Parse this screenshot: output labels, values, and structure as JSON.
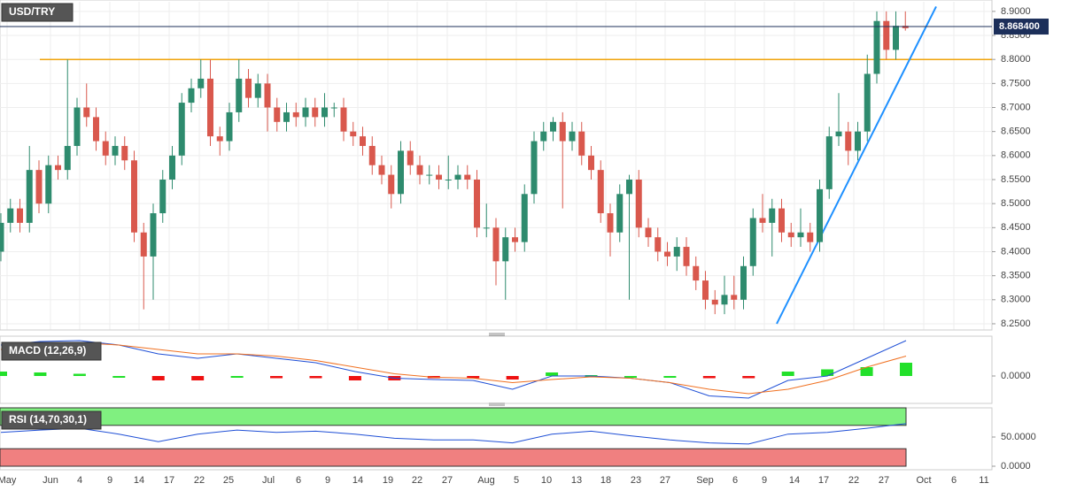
{
  "chart_data": [
    {
      "type": "candlestick",
      "title": "USD/TRY",
      "up_color": "#2e8b6e",
      "down_color": "#d9584d",
      "x_labels": [
        "May",
        "Jun",
        "4",
        "9",
        "14",
        "17",
        "22",
        "25",
        "Jul",
        "6",
        "9",
        "14",
        "19",
        "22",
        "27",
        "Aug",
        "5",
        "10",
        "13",
        "18",
        "23",
        "27",
        "Sep",
        "6",
        "9",
        "14",
        "17",
        "22",
        "27",
        "Oct",
        "6",
        "11"
      ],
      "open": [
        8.4,
        8.46,
        8.49,
        8.46,
        8.57,
        8.5,
        8.58,
        8.57,
        8.62,
        8.7,
        8.68,
        8.63,
        8.6,
        8.62,
        8.59,
        8.44,
        8.39,
        8.48,
        8.55,
        8.6,
        8.71,
        8.74,
        8.76,
        8.64,
        8.63,
        8.69,
        8.76,
        8.72,
        8.75,
        8.7,
        8.67,
        8.69,
        8.68,
        8.7,
        8.68,
        8.7,
        8.7,
        8.65,
        8.64,
        8.62,
        8.58,
        8.56,
        8.52,
        8.61,
        8.58,
        8.56,
        8.56,
        8.55,
        8.55,
        8.56,
        8.55,
        8.45,
        8.45,
        8.38,
        8.43,
        8.42,
        8.52,
        8.63,
        8.65,
        8.67,
        8.63,
        8.65,
        8.6,
        8.57,
        8.48,
        8.44,
        8.52,
        8.55,
        8.45,
        8.43,
        8.4,
        8.39,
        8.41,
        8.37,
        8.34,
        8.3,
        8.29,
        8.31,
        8.3,
        8.37,
        8.47,
        8.46,
        8.49,
        8.44,
        8.43,
        8.44,
        8.42,
        8.53,
        8.64,
        8.65,
        8.61,
        8.65,
        8.77,
        8.88,
        8.82,
        8.87
      ],
      "high": [
        8.48,
        8.51,
        8.51,
        8.62,
        8.59,
        8.6,
        8.6,
        8.8,
        8.72,
        8.75,
        8.7,
        8.65,
        8.64,
        8.64,
        8.61,
        8.46,
        8.5,
        8.57,
        8.62,
        8.73,
        8.76,
        8.8,
        8.8,
        8.66,
        8.71,
        8.8,
        8.78,
        8.77,
        8.77,
        8.72,
        8.71,
        8.71,
        8.72,
        8.72,
        8.73,
        8.71,
        8.72,
        8.67,
        8.66,
        8.64,
        8.6,
        8.58,
        8.63,
        8.63,
        8.6,
        8.58,
        8.58,
        8.6,
        8.58,
        8.58,
        8.57,
        8.5,
        8.47,
        8.45,
        8.45,
        8.54,
        8.65,
        8.67,
        8.68,
        8.69,
        8.67,
        8.67,
        8.62,
        8.59,
        8.5,
        8.54,
        8.56,
        8.57,
        8.47,
        8.45,
        8.42,
        8.43,
        8.43,
        8.39,
        8.36,
        8.32,
        8.35,
        8.35,
        8.39,
        8.49,
        8.52,
        8.51,
        8.51,
        8.46,
        8.49,
        8.46,
        8.55,
        8.66,
        8.73,
        8.67,
        8.67,
        8.81,
        8.9,
        8.9,
        8.9,
        8.9
      ],
      "low": [
        8.38,
        8.44,
        8.44,
        8.44,
        8.48,
        8.48,
        8.55,
        8.55,
        8.6,
        8.66,
        8.61,
        8.58,
        8.58,
        8.57,
        8.42,
        8.28,
        8.3,
        8.46,
        8.53,
        8.58,
        8.69,
        8.72,
        8.62,
        8.6,
        8.61,
        8.67,
        8.7,
        8.7,
        8.65,
        8.65,
        8.65,
        8.66,
        8.66,
        8.66,
        8.66,
        8.68,
        8.63,
        8.62,
        8.6,
        8.56,
        8.54,
        8.49,
        8.5,
        8.56,
        8.54,
        8.54,
        8.53,
        8.53,
        8.53,
        8.53,
        8.43,
        8.43,
        8.33,
        8.3,
        8.4,
        8.4,
        8.5,
        8.61,
        8.63,
        8.49,
        8.61,
        8.58,
        8.55,
        8.46,
        8.39,
        8.42,
        8.3,
        8.43,
        8.41,
        8.38,
        8.37,
        8.36,
        8.35,
        8.32,
        8.28,
        8.27,
        8.27,
        8.28,
        8.28,
        8.35,
        8.44,
        8.39,
        8.42,
        8.41,
        8.41,
        8.4,
        8.4,
        8.51,
        8.62,
        8.58,
        8.59,
        8.63,
        8.75,
        8.8,
        8.8,
        8.86
      ],
      "close": [
        8.46,
        8.49,
        8.46,
        8.57,
        8.5,
        8.58,
        8.57,
        8.62,
        8.7,
        8.68,
        8.63,
        8.6,
        8.62,
        8.59,
        8.44,
        8.39,
        8.48,
        8.55,
        8.6,
        8.71,
        8.74,
        8.76,
        8.64,
        8.63,
        8.69,
        8.76,
        8.72,
        8.75,
        8.7,
        8.67,
        8.69,
        8.68,
        8.7,
        8.68,
        8.7,
        8.7,
        8.65,
        8.64,
        8.62,
        8.58,
        8.56,
        8.52,
        8.61,
        8.58,
        8.56,
        8.56,
        8.55,
        8.55,
        8.56,
        8.55,
        8.45,
        8.45,
        8.38,
        8.43,
        8.42,
        8.52,
        8.63,
        8.65,
        8.67,
        8.63,
        8.65,
        8.6,
        8.57,
        8.48,
        8.44,
        8.52,
        8.55,
        8.45,
        8.43,
        8.4,
        8.39,
        8.41,
        8.37,
        8.34,
        8.3,
        8.29,
        8.31,
        8.3,
        8.37,
        8.47,
        8.46,
        8.49,
        8.44,
        8.43,
        8.44,
        8.42,
        8.53,
        8.64,
        8.65,
        8.61,
        8.65,
        8.77,
        8.88,
        8.82,
        8.87,
        8.865
      ],
      "ylim": [
        8.24,
        8.92
      ],
      "yticks": [
        {
          "value": 8.9,
          "label": "8.9000"
        },
        {
          "value": 8.85,
          "label": "8.8500"
        },
        {
          "value": 8.8,
          "label": "8.8000"
        },
        {
          "value": 8.75,
          "label": "8.7500"
        },
        {
          "value": 8.7,
          "label": "8.7000"
        },
        {
          "value": 8.65,
          "label": "8.6500"
        },
        {
          "value": 8.6,
          "label": "8.6000"
        },
        {
          "value": 8.55,
          "label": "8.5500"
        },
        {
          "value": 8.5,
          "label": "8.5000"
        },
        {
          "value": 8.45,
          "label": "8.4500"
        },
        {
          "value": 8.4,
          "label": "8.4000"
        },
        {
          "value": 8.35,
          "label": "8.3500"
        },
        {
          "value": 8.3,
          "label": "8.3000"
        },
        {
          "value": 8.25,
          "label": "8.2500"
        }
      ],
      "last_price": {
        "value": 8.8684,
        "label": "8.868400",
        "color": "#1c2f5a"
      },
      "resistance": {
        "value": 8.8,
        "color": "#f0a30a"
      },
      "trendline": {
        "from": 8.25,
        "to": 8.91,
        "color": "#1e90ff"
      },
      "grid": true
    },
    {
      "type": "macd",
      "title": "MACD (12,26,9)",
      "ylim": [
        -0.06,
        0.09
      ],
      "yticks": [
        {
          "value": 0,
          "label": "0.0000"
        }
      ],
      "series": [
        {
          "kind": "bar",
          "up_color": "#22e02a",
          "down_color": "#ee1111",
          "values": [
            0.01,
            0.008,
            0.005,
            0,
            -0.01,
            -0.01,
            0,
            -0.005,
            -0.005,
            -0.01,
            -0.01,
            -0.005,
            -0.005,
            -0.008,
            0.008,
            0.002,
            0,
            0,
            -0.005,
            -0.005,
            0.01,
            0.015,
            0.02,
            0.03
          ]
        },
        {
          "kind": "line",
          "color": "#1f4fd6",
          "values": [
            0.07,
            0.078,
            0.08,
            0.07,
            0.05,
            0.04,
            0.05,
            0.04,
            0.03,
            0.01,
            -0.005,
            -0.008,
            -0.01,
            -0.03,
            0,
            0,
            -0.005,
            -0.015,
            -0.045,
            -0.05,
            -0.01,
            0,
            0.04,
            0.08
          ]
        },
        {
          "kind": "line",
          "color": "#f07020",
          "values": [
            0.06,
            0.07,
            0.075,
            0.07,
            0.06,
            0.05,
            0.05,
            0.045,
            0.035,
            0.02,
            0.005,
            -0.003,
            -0.005,
            -0.015,
            -0.008,
            -0.002,
            -0.005,
            -0.015,
            -0.03,
            -0.04,
            -0.03,
            -0.01,
            0.02,
            0.045
          ]
        }
      ]
    },
    {
      "type": "rsi",
      "title": "RSI (14,70,30,1)",
      "ylim": [
        0,
        100
      ],
      "yticks": [
        {
          "value": 50,
          "label": "50.0000"
        },
        {
          "value": 0,
          "label": "0.0000"
        }
      ],
      "bands": [
        {
          "from": 70,
          "to": 100,
          "color": "#80f080"
        },
        {
          "from": 0,
          "to": 30,
          "color": "#f08080"
        }
      ],
      "series": [
        {
          "kind": "line",
          "color": "#1f4fd6",
          "values": [
            58,
            62,
            65,
            55,
            42,
            55,
            62,
            58,
            60,
            55,
            48,
            45,
            45,
            40,
            55,
            60,
            52,
            45,
            40,
            38,
            55,
            58,
            65,
            73
          ]
        }
      ]
    }
  ]
}
